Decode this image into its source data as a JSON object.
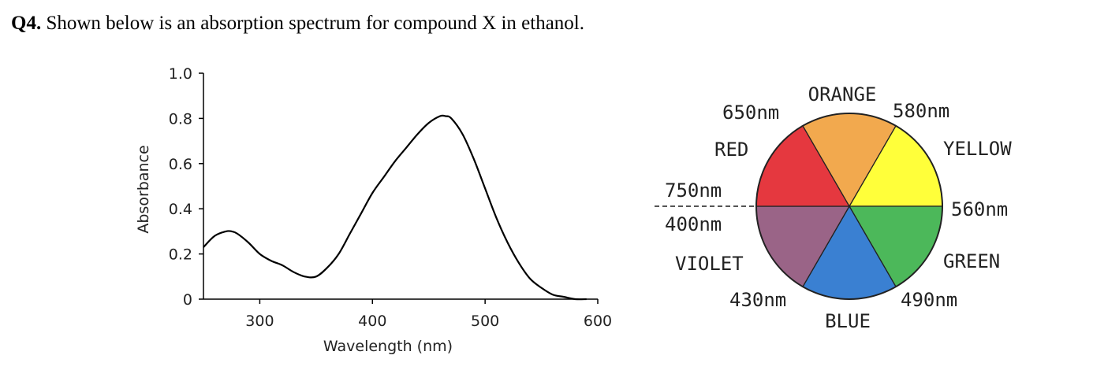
{
  "question": {
    "number": "Q4.",
    "text": "Shown below is an absorption spectrum for compound X in ethanol."
  },
  "chart_data": [
    {
      "type": "line",
      "xlabel": "Wavelength (nm)",
      "ylabel": "Absorbance",
      "xlim": [
        250,
        600
      ],
      "ylim": [
        0,
        1.0
      ],
      "x_ticks": [
        300,
        400,
        500,
        600
      ],
      "x_tick_labels": [
        "300",
        "400",
        "500",
        "600"
      ],
      "y_ticks": [
        0,
        0.2,
        0.4,
        0.6,
        0.8,
        1.0
      ],
      "y_tick_labels": [
        "0",
        "0.2",
        "0.4",
        "0.6",
        "0.8",
        "1.0"
      ],
      "grid": false,
      "series": [
        {
          "color": "#000000",
          "x": [
            250,
            260,
            270,
            275,
            280,
            290,
            300,
            310,
            320,
            330,
            340,
            350,
            360,
            370,
            380,
            390,
            400,
            410,
            420,
            430,
            440,
            450,
            460,
            465,
            470,
            480,
            490,
            500,
            510,
            520,
            530,
            540,
            550,
            560,
            570,
            580,
            590
          ],
          "y": [
            0.23,
            0.28,
            0.3,
            0.3,
            0.29,
            0.25,
            0.2,
            0.17,
            0.15,
            0.12,
            0.1,
            0.1,
            0.14,
            0.2,
            0.29,
            0.38,
            0.47,
            0.54,
            0.61,
            0.67,
            0.73,
            0.78,
            0.81,
            0.81,
            0.8,
            0.73,
            0.62,
            0.49,
            0.36,
            0.25,
            0.16,
            0.09,
            0.05,
            0.02,
            0.01,
            0.0,
            0.0
          ]
        }
      ]
    },
    {
      "type": "pie",
      "labels": [
        "YELLOW",
        "GREEN",
        "BLUE",
        "VIOLET",
        "RED",
        "ORANGE"
      ],
      "values": [
        1,
        1,
        1,
        1,
        1,
        1
      ],
      "colors": [
        "#FFFF3A",
        "#4CB85A",
        "#3A80D2",
        "#9A6487",
        "#E5383F",
        "#F2A94E"
      ],
      "boundary_labels": [
        "580nm",
        "560nm",
        "490nm",
        "430nm",
        "400nm",
        "750nm",
        "650nm"
      ]
    }
  ]
}
